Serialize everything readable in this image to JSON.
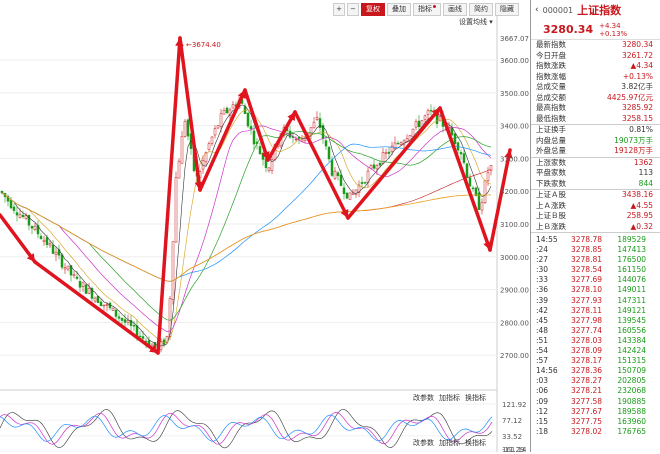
{
  "toolbar": {
    "buttons": [
      {
        "label": "+",
        "sym": true
      },
      {
        "label": "−",
        "sym": true
      },
      {
        "label": "复权",
        "active": true
      },
      {
        "label": "叠加"
      },
      {
        "label": "画线"
      },
      {
        "label": "简约"
      },
      {
        "label": "隐藏"
      }
    ],
    "dot_label": "指标"
  },
  "ma_setting": "设置均线",
  "indicator_bar_1": [
    "改参数",
    "加指标",
    "换指标"
  ],
  "indicator_bar_2": [
    "改参数",
    "加指标",
    "换指标"
  ],
  "annotation": "3674.40",
  "y_axis": [
    "3667.07",
    "3600.00",
    "3500.00",
    "3400.00",
    "3300.00",
    "3200.00",
    "3100.00",
    "3000.00",
    "2900.00",
    "2800.00",
    "2700.00"
  ],
  "osc_axis": [
    "121.92",
    "77.12",
    "33.52",
    "-11.29",
    "161.14"
  ],
  "quote": {
    "code": "000001",
    "name": "上证指数",
    "price": "3280.34",
    "change": "+4.34",
    "change_pct": "+0.13%",
    "stats": [
      {
        "k": "最新指数",
        "v": "3280.34",
        "c": "r"
      },
      {
        "k": "今日开盘",
        "v": "3261.72",
        "c": "r"
      },
      {
        "k": "指数涨跌",
        "v": "▲4.34",
        "c": "r"
      },
      {
        "k": "指数涨幅",
        "v": "+0.13%",
        "c": "r"
      },
      {
        "k": "总成交量",
        "v": "3.82亿手",
        "c": "k"
      },
      {
        "k": "总成交额",
        "v": "4425.97亿元",
        "c": "r"
      },
      {
        "k": "最高指数",
        "v": "3285.92",
        "c": "r"
      },
      {
        "k": "最低指数",
        "v": "3258.15",
        "c": "r"
      }
    ],
    "stats2": [
      {
        "k": "上证换手",
        "v": "0.81%",
        "c": "k"
      },
      {
        "k": "内盘总量",
        "v": "19073万手",
        "c": "g"
      },
      {
        "k": "外盘总量",
        "v": "19128万手",
        "c": "r"
      }
    ],
    "stats3": [
      {
        "k": "上涨家数",
        "v": "1362",
        "c": "r"
      },
      {
        "k": "平盘家数",
        "v": "113",
        "c": "k"
      },
      {
        "k": "下跌家数",
        "v": "844",
        "c": "g"
      }
    ],
    "stats4": [
      {
        "k": "上证Ａ股",
        "v": "3438.16",
        "c": "r"
      },
      {
        "k": "上Ａ涨跌",
        "v": "▲4.55",
        "c": "r"
      },
      {
        "k": "上证Ｂ股",
        "v": "258.95",
        "c": "r"
      },
      {
        "k": "上Ｂ涨跌",
        "v": "▲0.32",
        "c": "r"
      }
    ]
  },
  "ticks": [
    {
      "t": "14:55",
      "p": "3278.78",
      "v": "189529"
    },
    {
      "t": ":24",
      "p": "3278.85",
      "v": "147413"
    },
    {
      "t": ":27",
      "p": "3278.81",
      "v": "176500"
    },
    {
      "t": ":30",
      "p": "3278.54",
      "v": "161150"
    },
    {
      "t": ":33",
      "p": "3277.69",
      "v": "144076"
    },
    {
      "t": ":36",
      "p": "3278.10",
      "v": "149011"
    },
    {
      "t": ":39",
      "p": "3277.93",
      "v": "147311"
    },
    {
      "t": ":42",
      "p": "3278.11",
      "v": "149121"
    },
    {
      "t": ":45",
      "p": "3277.98",
      "v": "139545"
    },
    {
      "t": ":48",
      "p": "3277.74",
      "v": "160556"
    },
    {
      "t": ":51",
      "p": "3278.03",
      "v": "143384"
    },
    {
      "t": ":54",
      "p": "3278.09",
      "v": "142424"
    },
    {
      "t": ":57",
      "p": "3278.17",
      "v": "151315"
    },
    {
      "t": "14:56",
      "p": "3278.36",
      "v": "150709"
    },
    {
      "t": ":03",
      "p": "3278.27",
      "v": "202805"
    },
    {
      "t": ":06",
      "p": "3278.21",
      "v": "232068"
    },
    {
      "t": ":09",
      "p": "3277.58",
      "v": "190885"
    },
    {
      "t": ":12",
      "p": "3277.67",
      "v": "189588"
    },
    {
      "t": ":15",
      "p": "3277.75",
      "v": "163960"
    },
    {
      "t": ":18",
      "p": "3278.02",
      "v": "176765"
    }
  ],
  "colors": {
    "up": "#c8181e",
    "down": "#1a9a1a",
    "arrow": "#e0141e"
  }
}
